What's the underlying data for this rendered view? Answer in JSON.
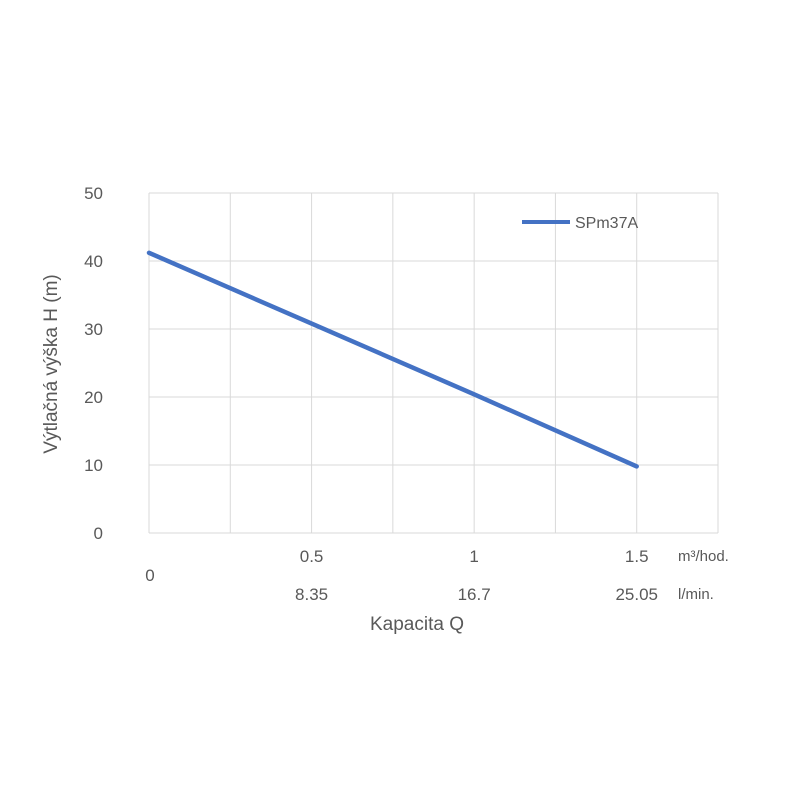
{
  "chart_data": {
    "type": "line",
    "title": "",
    "xlabel": "Kapacita Q",
    "ylabel": "Výtlačná výška H (m)",
    "xlim": [
      0,
      1.75
    ],
    "ylim": [
      0,
      50
    ],
    "y_ticks": [
      "0",
      "10",
      "20",
      "30",
      "40",
      "50"
    ],
    "x_ticks_primary": [
      {
        "x": 0.5,
        "label": "0.5"
      },
      {
        "x": 1.0,
        "label": "1"
      },
      {
        "x": 1.5,
        "label": "1.5"
      }
    ],
    "x_tick_origin": "0",
    "x_ticks_secondary": [
      {
        "x": 0.5,
        "label": "8.35"
      },
      {
        "x": 1.0,
        "label": "16.7"
      },
      {
        "x": 1.5,
        "label": "25.05"
      }
    ],
    "x_unit_primary": "m³/hod.",
    "x_unit_secondary": "l/min.",
    "grid": true,
    "legend_position": "top-right",
    "series": [
      {
        "name": "SPm37A",
        "color": "#4472C4",
        "x": [
          0,
          0.5,
          1.0,
          1.5
        ],
        "y": [
          41.2,
          30.8,
          20.4,
          9.8
        ]
      }
    ]
  }
}
